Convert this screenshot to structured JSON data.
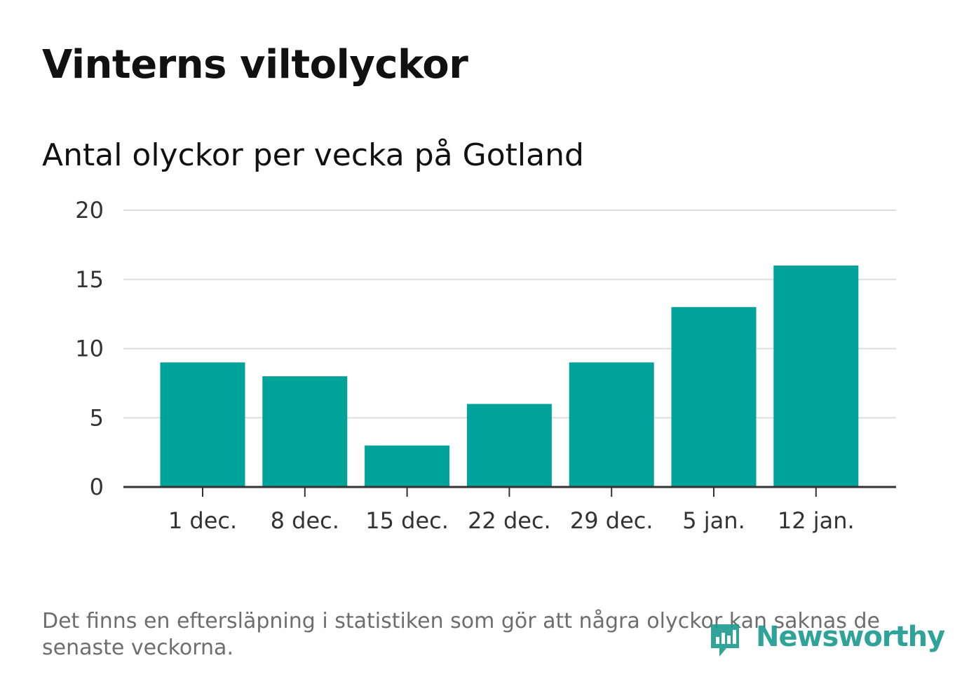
{
  "title": "Vinterns viltolyckor",
  "subtitle": "Antal olyckor per vecka på Gotland",
  "footnote": "Det finns en eftersläpning i statistiken som gör att några olyckor kan saknas de senaste veckorna.",
  "logo": {
    "text": "Newsworthy",
    "icon": "newsworthy-logo-icon"
  },
  "colors": {
    "bar": "#00a39a",
    "grid": "#dddddd",
    "axis": "#333333",
    "logo": "#1a9a8d"
  },
  "chart_data": {
    "type": "bar",
    "categories": [
      "1 dec.",
      "8 dec.",
      "15 dec.",
      "22 dec.",
      "29 dec.",
      "5 jan.",
      "12 jan."
    ],
    "values": [
      9,
      8,
      3,
      6,
      9,
      13,
      16
    ],
    "title": "Vinterns viltolyckor",
    "subtitle": "Antal olyckor per vecka på Gotland",
    "xlabel": "",
    "ylabel": "",
    "ylim": [
      0,
      20
    ],
    "yticks": [
      0,
      5,
      10,
      15,
      20
    ],
    "grid": true,
    "legend": "none"
  }
}
